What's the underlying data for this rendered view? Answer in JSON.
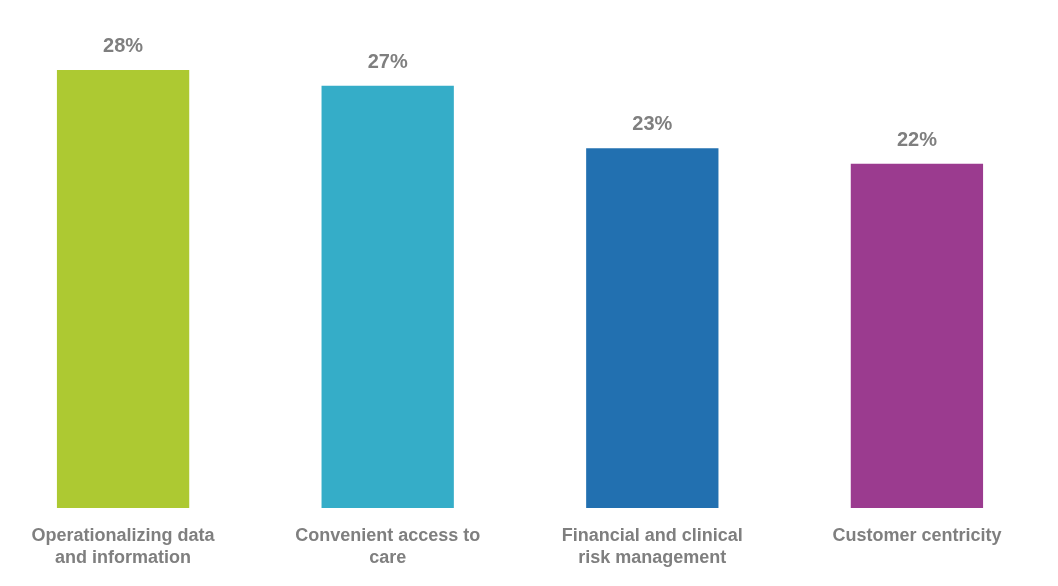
{
  "chart_data": {
    "type": "bar",
    "categories": [
      "Operationalizing data and information",
      "Convenient access to care",
      "Financial and clinical risk management",
      "Customer centricity"
    ],
    "values": [
      28,
      27,
      23,
      22
    ],
    "colors": [
      "#adc932",
      "#35adc8",
      "#2270b0",
      "#9b3b8f"
    ],
    "value_labels": [
      "28%",
      "27%",
      "23%",
      "22%"
    ],
    "grid": false,
    "legend": false
  }
}
